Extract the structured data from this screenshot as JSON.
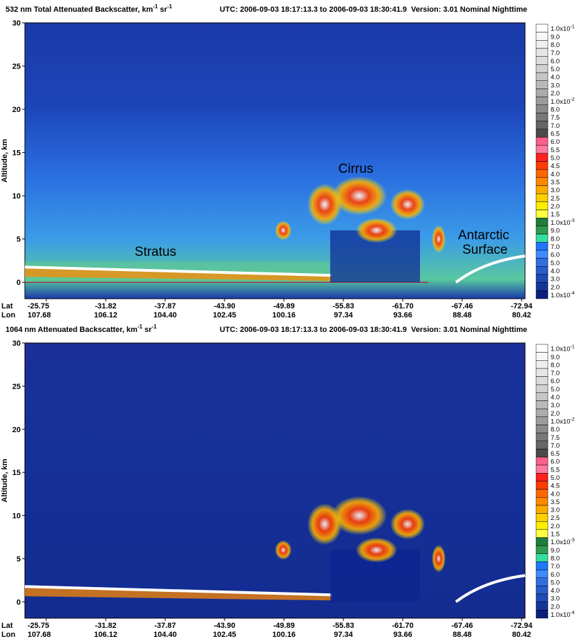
{
  "chart_data": [
    {
      "type": "heatmap",
      "title_parts": [
        "532 nm Total Attenuated Backscatter, km",
        "-1",
        " sr",
        "-1"
      ],
      "utc": "UTC:  2006-09-03 18:17:13.3  to  2006-09-03 18:30:41.9",
      "version": "Version: 3.01  Nominal  Nighttime",
      "y_label": "Altitude, km",
      "ylim": [
        -1.9,
        30
      ],
      "yticks": [
        0,
        5,
        10,
        15,
        20,
        25,
        30
      ],
      "x_row_labels": [
        "Lat",
        "Lon"
      ],
      "lat": [
        "-25.75",
        "-31.82",
        "-37.87",
        "-43.90",
        "-49.89",
        "-55.83",
        "-61.70",
        "-67.46",
        "-72.94"
      ],
      "lon": [
        "107.68",
        "106.12",
        "104.40",
        "102.45",
        "100.16",
        "97.34",
        "93.66",
        "88.48",
        "80.42"
      ],
      "annotations": [
        "Cirrus",
        "Stratus",
        "Antarctic",
        "Surface"
      ],
      "colorbar": {
        "labels": [
          {
            "base": "1.0x10",
            "exp": "-1"
          },
          "9.0",
          "8.0",
          "7.0",
          "6.0",
          "5.0",
          "4.0",
          "3.0",
          "2.0",
          {
            "base": "1.0x10",
            "exp": "-2"
          },
          "8.0",
          "7.5",
          "7.0",
          "6.5",
          "6.0",
          "5.5",
          "5.0",
          "4.5",
          "4.0",
          "3.5",
          "3.0",
          "2.5",
          "2.0",
          "1.5",
          {
            "base": "1.0x10",
            "exp": "-3"
          },
          "9.0",
          "8.0",
          "7.0",
          "6.0",
          "5.0",
          "4.0",
          "3.0",
          "2.0",
          {
            "base": "1.0x10",
            "exp": "-4"
          }
        ],
        "colors": [
          "#ffffff",
          "#f7f7f7",
          "#efefef",
          "#e6e6e6",
          "#dcdcdc",
          "#d2d2d2",
          "#c6c6c6",
          "#b9b9b9",
          "#acacac",
          "#9c9c9c",
          "#8a8a8a",
          "#787878",
          "#666666",
          "#4a4a4a",
          "#ff5f8a",
          "#ff7aa0",
          "#ff2020",
          "#ff3c00",
          "#ff6600",
          "#ff8800",
          "#ffaa00",
          "#ffd000",
          "#ffee00",
          "#ffff40",
          "#1e7d3c",
          "#2e9a50",
          "#33e0a0",
          "#1f78ff",
          "#3d8bff",
          "#2f6fe0",
          "#2a5ccc",
          "#1f4bb8",
          "#16359c",
          "#0c1e80"
        ]
      }
    },
    {
      "type": "heatmap",
      "title_parts": [
        "1064 nm Attenuated Backscatter, km",
        "-1",
        " sr",
        "-1"
      ],
      "utc": "UTC:  2006-09-03 18:17:13.3  to  2006-09-03 18:30:41.9",
      "version": "Version: 3.01  Nominal  Nighttime",
      "y_label": "Altitude, km",
      "ylim": [
        -1.9,
        30
      ],
      "yticks": [
        0,
        5,
        10,
        15,
        20,
        25,
        30
      ],
      "x_row_labels": [
        "Lat",
        "Lon"
      ],
      "lat": [
        "-25.75",
        "-31.82",
        "-37.87",
        "-43.90",
        "-49.89",
        "-55.83",
        "-61.70",
        "-67.46",
        "-72.94"
      ],
      "lon": [
        "107.68",
        "106.12",
        "104.40",
        "102.45",
        "100.16",
        "97.34",
        "93.66",
        "88.48",
        "80.42"
      ],
      "colorbar": {
        "labels": [
          {
            "base": "1.0x10",
            "exp": "-1"
          },
          "9.0",
          "8.0",
          "7.0",
          "6.0",
          "5.0",
          "4.0",
          "3.0",
          "2.0",
          {
            "base": "1.0x10",
            "exp": "-2"
          },
          "8.0",
          "7.5",
          "7.0",
          "6.5",
          "6.0",
          "5.5",
          "5.0",
          "4.5",
          "4.0",
          "3.5",
          "3.0",
          "2.5",
          "2.0",
          "1.5",
          {
            "base": "1.0x10",
            "exp": "-3"
          },
          "9.0",
          "8.0",
          "7.0",
          "6.0",
          "5.0",
          "4.0",
          "3.0",
          "2.0",
          {
            "base": "1.0x10",
            "exp": "-4"
          }
        ],
        "colors": [
          "#ffffff",
          "#f7f7f7",
          "#efefef",
          "#e6e6e6",
          "#dcdcdc",
          "#d2d2d2",
          "#c6c6c6",
          "#b9b9b9",
          "#acacac",
          "#9c9c9c",
          "#8a8a8a",
          "#787878",
          "#666666",
          "#4a4a4a",
          "#ff5f8a",
          "#ff7aa0",
          "#ff2020",
          "#ff3c00",
          "#ff6600",
          "#ff8800",
          "#ffaa00",
          "#ffd000",
          "#ffee00",
          "#ffff40",
          "#1e7d3c",
          "#2e9a50",
          "#33e0a0",
          "#1f78ff",
          "#3d8bff",
          "#2f6fe0",
          "#2a5ccc",
          "#1f4bb8",
          "#16359c",
          "#0c1e80"
        ]
      }
    }
  ]
}
